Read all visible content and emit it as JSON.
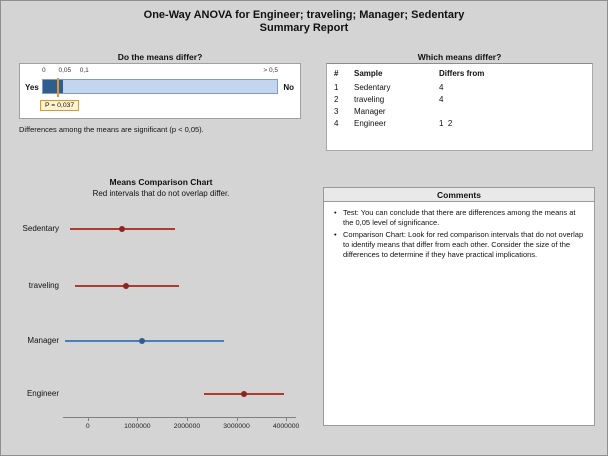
{
  "title": {
    "line1": "One-Way ANOVA for Engineer; traveling; Manager; Sedentary",
    "line2": "Summary Report"
  },
  "means_differ": {
    "heading": "Do the means differ?",
    "ticks": [
      "0",
      "0,05",
      "0,1",
      "> 0,5"
    ],
    "yes_label": "Yes",
    "no_label": "No",
    "p_value": 0.037,
    "p_label": "P = 0,037",
    "note": "Differences among the means are significant (p < 0,05)."
  },
  "which_differ": {
    "heading": "Which means differ?",
    "columns": [
      "#",
      "Sample",
      "Differs from"
    ],
    "rows": [
      {
        "num": "1",
        "sample": "Sedentary",
        "differs": "4"
      },
      {
        "num": "2",
        "sample": "traveling",
        "differs": "4"
      },
      {
        "num": "3",
        "sample": "Manager",
        "differs": ""
      },
      {
        "num": "4",
        "sample": "Engineer",
        "differs": "1  2"
      }
    ]
  },
  "comparison_chart": {
    "heading": "Means Comparison Chart",
    "subheading": "Red intervals that do not overlap differ."
  },
  "chart_data": {
    "type": "interval",
    "title": "Means Comparison Chart",
    "categories": [
      "Sedentary",
      "traveling",
      "Manager",
      "Engineer"
    ],
    "series": [
      {
        "name": "Sedentary",
        "low": -350000,
        "center": 700000,
        "high": 1750000,
        "color": "red"
      },
      {
        "name": "traveling",
        "low": -250000,
        "center": 780000,
        "high": 1850000,
        "color": "red"
      },
      {
        "name": "Manager",
        "low": -450000,
        "center": 1100000,
        "high": 2750000,
        "color": "blue"
      },
      {
        "name": "Engineer",
        "low": 2350000,
        "center": 3150000,
        "high": 3950000,
        "color": "red"
      }
    ],
    "xticks": [
      0,
      1000000,
      2000000,
      3000000,
      4000000
    ],
    "xlim": [
      -500000,
      4200000
    ]
  },
  "comments": {
    "heading": "Comments",
    "bullets": [
      "Test: You can conclude that there are differences among the means at the 0,05 level of significance.",
      "Comparison Chart: Look for red comparison intervals that do not overlap to identify means that differ from each other. Consider the size of the differences to determine if they have practical implications."
    ]
  },
  "colors": {
    "background": "#d4d4d4",
    "panel": "#ffffff",
    "red": "#b03a2e",
    "red_dot": "#8e2420",
    "blue": "#4a7ebb",
    "blue_dot": "#2d5e8e",
    "bar_fill": "#c3d6ee",
    "bar_dark": "#2d5e8e",
    "marker": "#e2962f",
    "p_box_bg": "#fdf3cf",
    "p_box_border": "#e2962f"
  }
}
